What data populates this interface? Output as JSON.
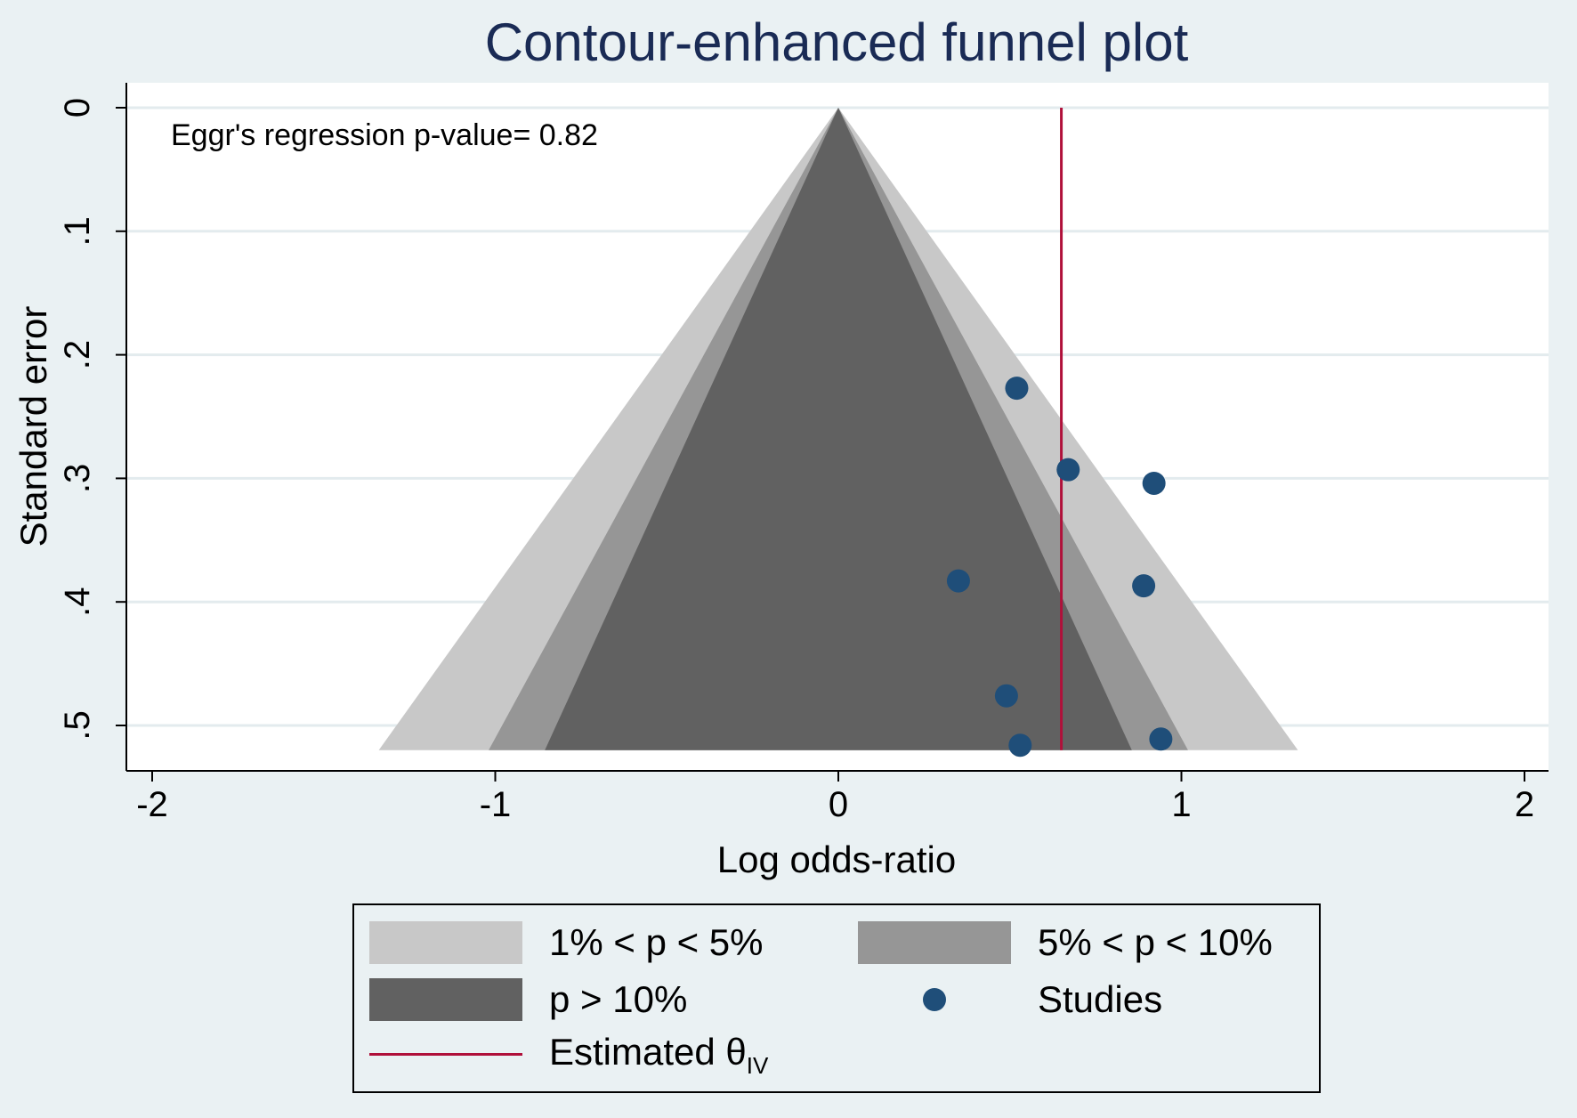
{
  "chart_data": {
    "type": "scatter",
    "title": "Contour-enhanced funnel plot",
    "xlabel": "Log odds-ratio",
    "ylabel": "Standard error",
    "xlim": [
      -2,
      2
    ],
    "ylim": [
      0.52,
      0
    ],
    "y_reversed": true,
    "xticks": [
      -2,
      -1,
      0,
      1,
      2
    ],
    "xtick_labels": [
      "-2",
      "-1",
      "0",
      "1",
      "2"
    ],
    "yticks": [
      0,
      0.1,
      0.2,
      0.3,
      0.4,
      0.5
    ],
    "ytick_labels": [
      "0",
      ".1",
      ".2",
      ".3",
      ".4",
      ".5"
    ],
    "grid": "horizontal",
    "annotation": "Eggr's regression p-value= 0.82",
    "estimated_theta": 0.65,
    "contours": [
      {
        "name": "1% < p < 5%",
        "z": 2.576,
        "color": "#c8c8c8"
      },
      {
        "name": "5% < p < 10%",
        "z": 1.96,
        "color": "#969696"
      },
      {
        "name": "p > 10%",
        "z": 1.645,
        "color": "#616161"
      }
    ],
    "series": [
      {
        "name": "Studies",
        "color": "#1f4e79",
        "points": [
          {
            "x": 0.52,
            "y": 0.227
          },
          {
            "x": 0.67,
            "y": 0.293
          },
          {
            "x": 0.92,
            "y": 0.304
          },
          {
            "x": 0.35,
            "y": 0.383
          },
          {
            "x": 0.89,
            "y": 0.387
          },
          {
            "x": 0.49,
            "y": 0.476
          },
          {
            "x": 0.94,
            "y": 0.511
          },
          {
            "x": 0.53,
            "y": 0.516
          }
        ]
      }
    ],
    "legend": {
      "position": "bottom",
      "items": {
        "c1": "1% < p < 5%",
        "c2": "5% < p < 10%",
        "c3": "p > 10%",
        "studies": "Studies",
        "estimated": "Estimated θ",
        "estimated_sub": "IV"
      }
    },
    "line_color": "#b0103a"
  }
}
